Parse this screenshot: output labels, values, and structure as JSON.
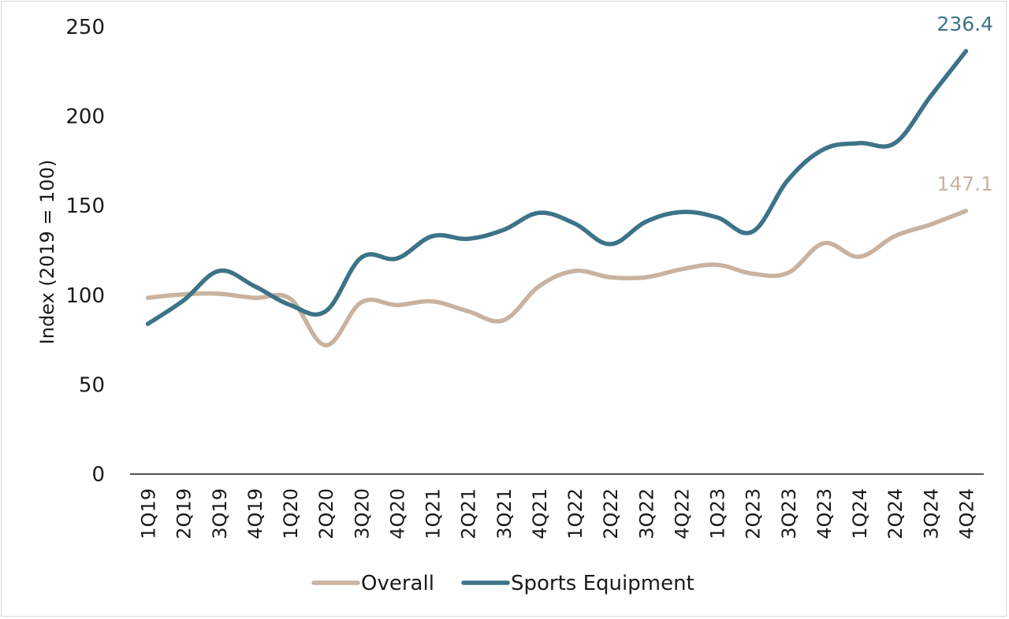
{
  "chart_data": {
    "type": "line",
    "categories": [
      "1Q19",
      "2Q19",
      "3Q19",
      "4Q19",
      "1Q20",
      "2Q20",
      "3Q20",
      "4Q20",
      "1Q21",
      "2Q21",
      "3Q21",
      "4Q21",
      "1Q22",
      "2Q22",
      "3Q22",
      "4Q22",
      "1Q23",
      "2Q23",
      "3Q23",
      "4Q23",
      "1Q24",
      "2Q24",
      "3Q24",
      "4Q24"
    ],
    "series": [
      {
        "name": "Overall",
        "color": "#c9b29f",
        "values": [
          98.5,
          100.5,
          100.8,
          98.5,
          98.0,
          72.0,
          96.0,
          94.5,
          96.5,
          91.0,
          86.0,
          105.0,
          113.5,
          110.0,
          110.0,
          114.5,
          117.0,
          112.0,
          112.5,
          129.0,
          121.5,
          133.0,
          139.5,
          147.1
        ],
        "end_label": "147.1"
      },
      {
        "name": "Sports Equipment",
        "color": "#3d7388",
        "values": [
          84.0,
          97.0,
          113.5,
          105.0,
          94.5,
          91.0,
          121.0,
          120.5,
          133.0,
          131.5,
          136.5,
          146.0,
          140.0,
          128.5,
          141.0,
          146.5,
          143.5,
          135.5,
          164.5,
          181.5,
          185.0,
          185.0,
          211.0,
          236.4
        ],
        "end_label": "236.4"
      }
    ],
    "title": "",
    "xlabel": "",
    "ylabel": "Index (2019 = 100)",
    "ylim": [
      0,
      250
    ],
    "yticks": [
      "0",
      "50",
      "100",
      "150",
      "200",
      "250"
    ],
    "grid": false,
    "legend_position": "bottom"
  }
}
